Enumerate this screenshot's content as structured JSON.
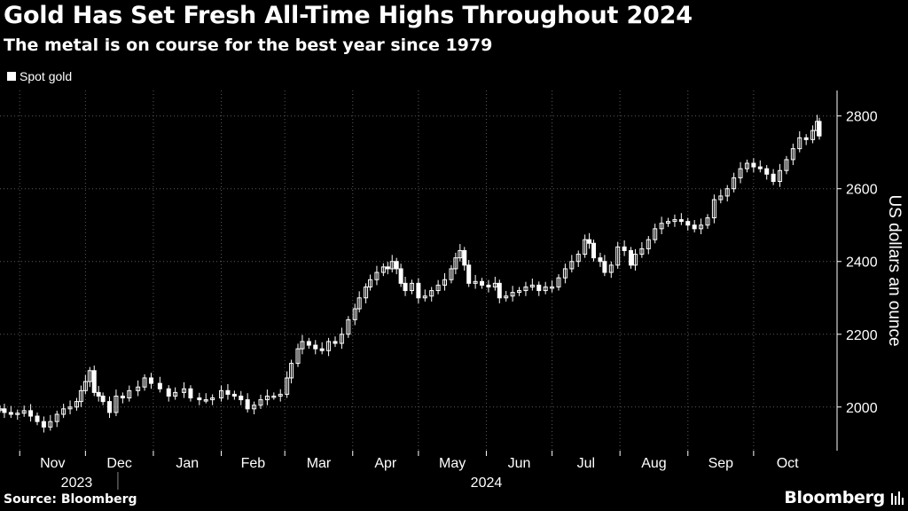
{
  "header": {
    "title": "Gold Has Set Fresh All-Time Highs Throughout 2024",
    "subtitle": "The metal is on course for the best year since 1979"
  },
  "legend": {
    "label": "Spot gold"
  },
  "footer": {
    "source": "Source: Bloomberg",
    "logo": "Bloomberg"
  },
  "colors": {
    "background": "#000000",
    "series": "#ffffff",
    "grid": "#5a5a5a",
    "axis": "#ffffff"
  },
  "chart_data": {
    "type": "candlestick",
    "title": "Gold Has Set Fresh All-Time Highs Throughout 2024",
    "subtitle": "The metal is on course for the best year since 1979",
    "ylabel": "US dollars an ounce",
    "xlabel": "",
    "ylim": [
      1880,
      2870
    ],
    "xlim": [
      "2023-10-23",
      "2024-10-31"
    ],
    "y_ticks": [
      2000,
      2200,
      2400,
      2600,
      2800
    ],
    "x_ticks": [
      {
        "date": "2023-11-01",
        "label": "Nov"
      },
      {
        "date": "2023-12-01",
        "label": "Dec"
      },
      {
        "date": "2024-01-01",
        "label": "Jan"
      },
      {
        "date": "2024-02-01",
        "label": "Feb"
      },
      {
        "date": "2024-03-01",
        "label": "Mar"
      },
      {
        "date": "2024-04-01",
        "label": "Apr"
      },
      {
        "date": "2024-05-01",
        "label": "May"
      },
      {
        "date": "2024-06-01",
        "label": "Jun"
      },
      {
        "date": "2024-07-01",
        "label": "Jul"
      },
      {
        "date": "2024-08-01",
        "label": "Aug"
      },
      {
        "date": "2024-09-01",
        "label": "Sep"
      },
      {
        "date": "2024-10-01",
        "label": "Oct"
      }
    ],
    "year_labels": [
      {
        "label": "2023",
        "center": "2023-11-27"
      },
      {
        "label": "2024",
        "center": "2024-06-01"
      }
    ],
    "grid": true,
    "legend_position": "top-left",
    "series": [
      {
        "name": "Spot gold",
        "points": [
          [
            "2023-10-23",
            1995
          ],
          [
            "2023-10-25",
            1985
          ],
          [
            "2023-10-28",
            1980
          ],
          [
            "2023-10-31",
            1983
          ],
          [
            "2023-11-03",
            1990
          ],
          [
            "2023-11-06",
            1975
          ],
          [
            "2023-11-09",
            1960
          ],
          [
            "2023-11-12",
            1945
          ],
          [
            "2023-11-15",
            1960
          ],
          [
            "2023-11-18",
            1980
          ],
          [
            "2023-11-21",
            1995
          ],
          [
            "2023-11-24",
            2000
          ],
          [
            "2023-11-27",
            2015
          ],
          [
            "2023-11-29",
            2045
          ],
          [
            "2023-12-01",
            2070
          ],
          [
            "2023-12-03",
            2100
          ],
          [
            "2023-12-05",
            2040
          ],
          [
            "2023-12-07",
            2030
          ],
          [
            "2023-12-09",
            2015
          ],
          [
            "2023-12-12",
            1985
          ],
          [
            "2023-12-15",
            2030
          ],
          [
            "2023-12-18",
            2025
          ],
          [
            "2023-12-21",
            2045
          ],
          [
            "2023-12-25",
            2055
          ],
          [
            "2023-12-28",
            2080
          ],
          [
            "2023-12-31",
            2065
          ],
          [
            "2024-01-04",
            2050
          ],
          [
            "2024-01-08",
            2030
          ],
          [
            "2024-01-11",
            2040
          ],
          [
            "2024-01-15",
            2050
          ],
          [
            "2024-01-18",
            2025
          ],
          [
            "2024-01-22",
            2020
          ],
          [
            "2024-01-25",
            2020
          ],
          [
            "2024-01-28",
            2025
          ],
          [
            "2024-02-01",
            2045
          ],
          [
            "2024-02-04",
            2035
          ],
          [
            "2024-02-07",
            2030
          ],
          [
            "2024-02-10",
            2020
          ],
          [
            "2024-02-13",
            1995
          ],
          [
            "2024-02-16",
            2005
          ],
          [
            "2024-02-19",
            2020
          ],
          [
            "2024-02-22",
            2030
          ],
          [
            "2024-02-25",
            2030
          ],
          [
            "2024-02-28",
            2035
          ],
          [
            "2024-03-02",
            2080
          ],
          [
            "2024-03-04",
            2120
          ],
          [
            "2024-03-07",
            2160
          ],
          [
            "2024-03-09",
            2180
          ],
          [
            "2024-03-12",
            2170
          ],
          [
            "2024-03-15",
            2160
          ],
          [
            "2024-03-18",
            2155
          ],
          [
            "2024-03-21",
            2180
          ],
          [
            "2024-03-24",
            2175
          ],
          [
            "2024-03-27",
            2200
          ],
          [
            "2024-03-30",
            2240
          ],
          [
            "2024-04-02",
            2270
          ],
          [
            "2024-04-04",
            2300
          ],
          [
            "2024-04-07",
            2330
          ],
          [
            "2024-04-09",
            2350
          ],
          [
            "2024-04-12",
            2370
          ],
          [
            "2024-04-15",
            2385
          ],
          [
            "2024-04-17",
            2380
          ],
          [
            "2024-04-19",
            2400
          ],
          [
            "2024-04-21",
            2380
          ],
          [
            "2024-04-23",
            2340
          ],
          [
            "2024-04-25",
            2320
          ],
          [
            "2024-04-28",
            2340
          ],
          [
            "2024-05-01",
            2300
          ],
          [
            "2024-05-04",
            2305
          ],
          [
            "2024-05-07",
            2320
          ],
          [
            "2024-05-10",
            2335
          ],
          [
            "2024-05-13",
            2350
          ],
          [
            "2024-05-16",
            2380
          ],
          [
            "2024-05-18",
            2410
          ],
          [
            "2024-05-20",
            2430
          ],
          [
            "2024-05-22",
            2390
          ],
          [
            "2024-05-24",
            2340
          ],
          [
            "2024-05-27",
            2345
          ],
          [
            "2024-05-30",
            2335
          ],
          [
            "2024-06-02",
            2330
          ],
          [
            "2024-06-05",
            2340
          ],
          [
            "2024-06-07",
            2300
          ],
          [
            "2024-06-10",
            2305
          ],
          [
            "2024-06-13",
            2315
          ],
          [
            "2024-06-16",
            2320
          ],
          [
            "2024-06-19",
            2330
          ],
          [
            "2024-06-22",
            2335
          ],
          [
            "2024-06-25",
            2320
          ],
          [
            "2024-06-28",
            2330
          ],
          [
            "2024-07-01",
            2330
          ],
          [
            "2024-07-04",
            2355
          ],
          [
            "2024-07-07",
            2380
          ],
          [
            "2024-07-10",
            2400
          ],
          [
            "2024-07-13",
            2420
          ],
          [
            "2024-07-16",
            2460
          ],
          [
            "2024-07-18",
            2450
          ],
          [
            "2024-07-20",
            2410
          ],
          [
            "2024-07-23",
            2400
          ],
          [
            "2024-07-25",
            2370
          ],
          [
            "2024-07-28",
            2390
          ],
          [
            "2024-07-31",
            2440
          ],
          [
            "2024-08-03",
            2430
          ],
          [
            "2024-08-06",
            2390
          ],
          [
            "2024-08-08",
            2420
          ],
          [
            "2024-08-11",
            2435
          ],
          [
            "2024-08-14",
            2460
          ],
          [
            "2024-08-17",
            2490
          ],
          [
            "2024-08-20",
            2505
          ],
          [
            "2024-08-23",
            2510
          ],
          [
            "2024-08-26",
            2515
          ],
          [
            "2024-08-29",
            2510
          ],
          [
            "2024-09-01",
            2500
          ],
          [
            "2024-09-04",
            2490
          ],
          [
            "2024-09-07",
            2500
          ],
          [
            "2024-09-10",
            2520
          ],
          [
            "2024-09-13",
            2570
          ],
          [
            "2024-09-16",
            2580
          ],
          [
            "2024-09-19",
            2600
          ],
          [
            "2024-09-22",
            2630
          ],
          [
            "2024-09-25",
            2655
          ],
          [
            "2024-09-28",
            2670
          ],
          [
            "2024-10-01",
            2660
          ],
          [
            "2024-10-04",
            2655
          ],
          [
            "2024-10-07",
            2640
          ],
          [
            "2024-10-10",
            2620
          ],
          [
            "2024-10-13",
            2650
          ],
          [
            "2024-10-16",
            2680
          ],
          [
            "2024-10-19",
            2710
          ],
          [
            "2024-10-22",
            2740
          ],
          [
            "2024-10-25",
            2735
          ],
          [
            "2024-10-28",
            2760
          ],
          [
            "2024-10-30",
            2785
          ],
          [
            "2024-10-31",
            2745
          ]
        ]
      }
    ]
  }
}
